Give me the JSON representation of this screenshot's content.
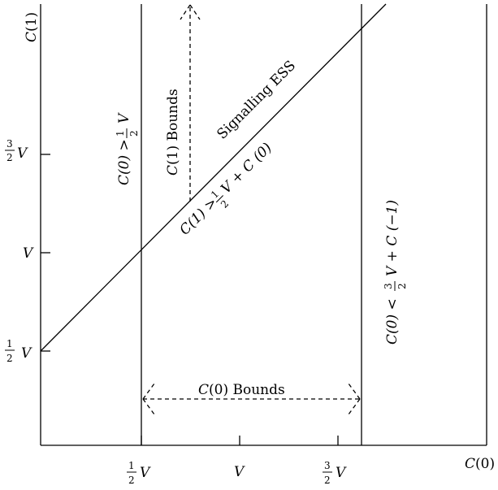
{
  "axes": {
    "x_label_main": "C",
    "x_label_arg": "(0)",
    "y_label_main": "C",
    "y_label_arg": "(1)",
    "variable": "V",
    "frac_num_half": "1",
    "frac_num_three_half": "3",
    "frac_den": "2"
  },
  "labels": {
    "signalling_ess": "Signalling ESS",
    "c1_bounds_main": "C",
    "c1_bounds_rest": "(1) Bounds",
    "c0_bounds_main": "C",
    "c0_bounds_rest": "(0) Bounds",
    "lower_bound_lhs": "C(0) >",
    "diag_lhs": "C(1) >",
    "diag_rhs": "V + C (0)",
    "upper_bound_lhs": "C(0)  <",
    "upper_bound_rhs": "V + C (−1)"
  }
}
